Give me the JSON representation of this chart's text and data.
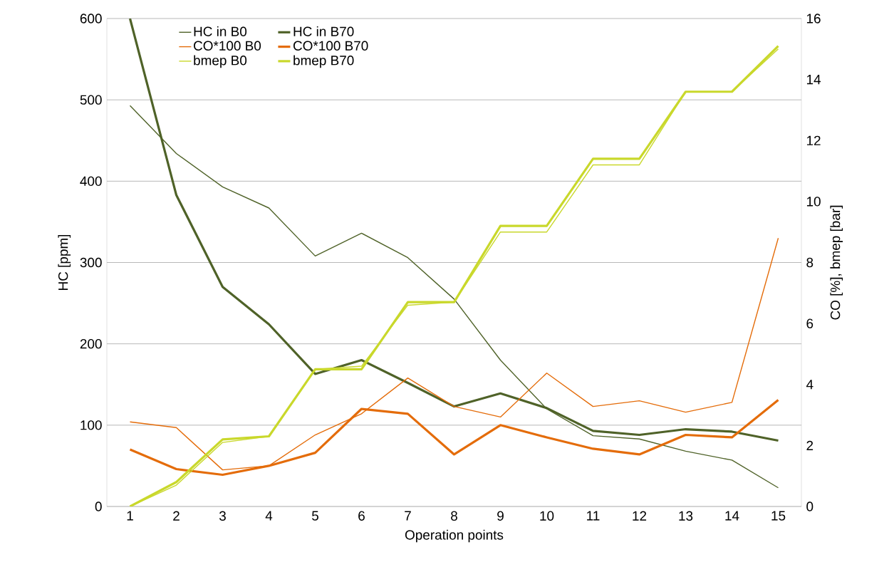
{
  "chart_data": {
    "type": "line",
    "xlabel": "Operation points",
    "ylabel": "HC [ppm]",
    "y2label": "CO [%],  bmep [bar]",
    "categories": [
      "1",
      "2",
      "3",
      "4",
      "5",
      "6",
      "7",
      "8",
      "9",
      "10",
      "11",
      "12",
      "13",
      "14",
      "15"
    ],
    "ylim": [
      0,
      600
    ],
    "yticks": [
      0,
      100,
      200,
      300,
      400,
      500,
      600
    ],
    "y2lim": [
      0,
      16
    ],
    "y2ticks": [
      0,
      2,
      4,
      6,
      8,
      10,
      12,
      14,
      16
    ],
    "grid": "y",
    "legend": "top left",
    "marker": "none",
    "line_style": "solid",
    "series": [
      {
        "name": "HC in B0",
        "color": "#4f6228",
        "axis": "y",
        "values": [
          493,
          434,
          393,
          367,
          308,
          336,
          306,
          255,
          180,
          120,
          87,
          83,
          68,
          57,
          23
        ]
      },
      {
        "name": "HC in B70",
        "color": "#4f6228",
        "axis": "y",
        "values": [
          600,
          383,
          270,
          224,
          163,
          180,
          152,
          123,
          139,
          121,
          93,
          88,
          95,
          92,
          81
        ]
      },
      {
        "name": "CO*100 B0",
        "color": "#e46c0a",
        "axis": "y",
        "values": [
          104,
          97,
          45,
          50,
          88,
          114,
          158,
          123,
          110,
          164,
          123,
          130,
          116,
          128,
          330
        ]
      },
      {
        "name": "CO*100 B70",
        "color": "#e46c0a",
        "axis": "y",
        "values": [
          70,
          46,
          39,
          50,
          66,
          120,
          114,
          64,
          100,
          85,
          71,
          64,
          88,
          85,
          131
        ]
      },
      {
        "name": "bmep B0",
        "color": "#c9d82b",
        "axis": "y2",
        "values": [
          0,
          0.7,
          2.1,
          2.3,
          4.5,
          4.6,
          6.6,
          6.7,
          9.0,
          9.0,
          11.2,
          11.2,
          13.6,
          13.6,
          15.0
        ]
      },
      {
        "name": "bmep B70",
        "color": "#c9d82b",
        "axis": "y2",
        "values": [
          0,
          0.8,
          2.2,
          2.3,
          4.5,
          4.5,
          6.7,
          6.7,
          9.2,
          9.2,
          11.4,
          11.4,
          13.6,
          13.6,
          15.1
        ]
      }
    ]
  }
}
